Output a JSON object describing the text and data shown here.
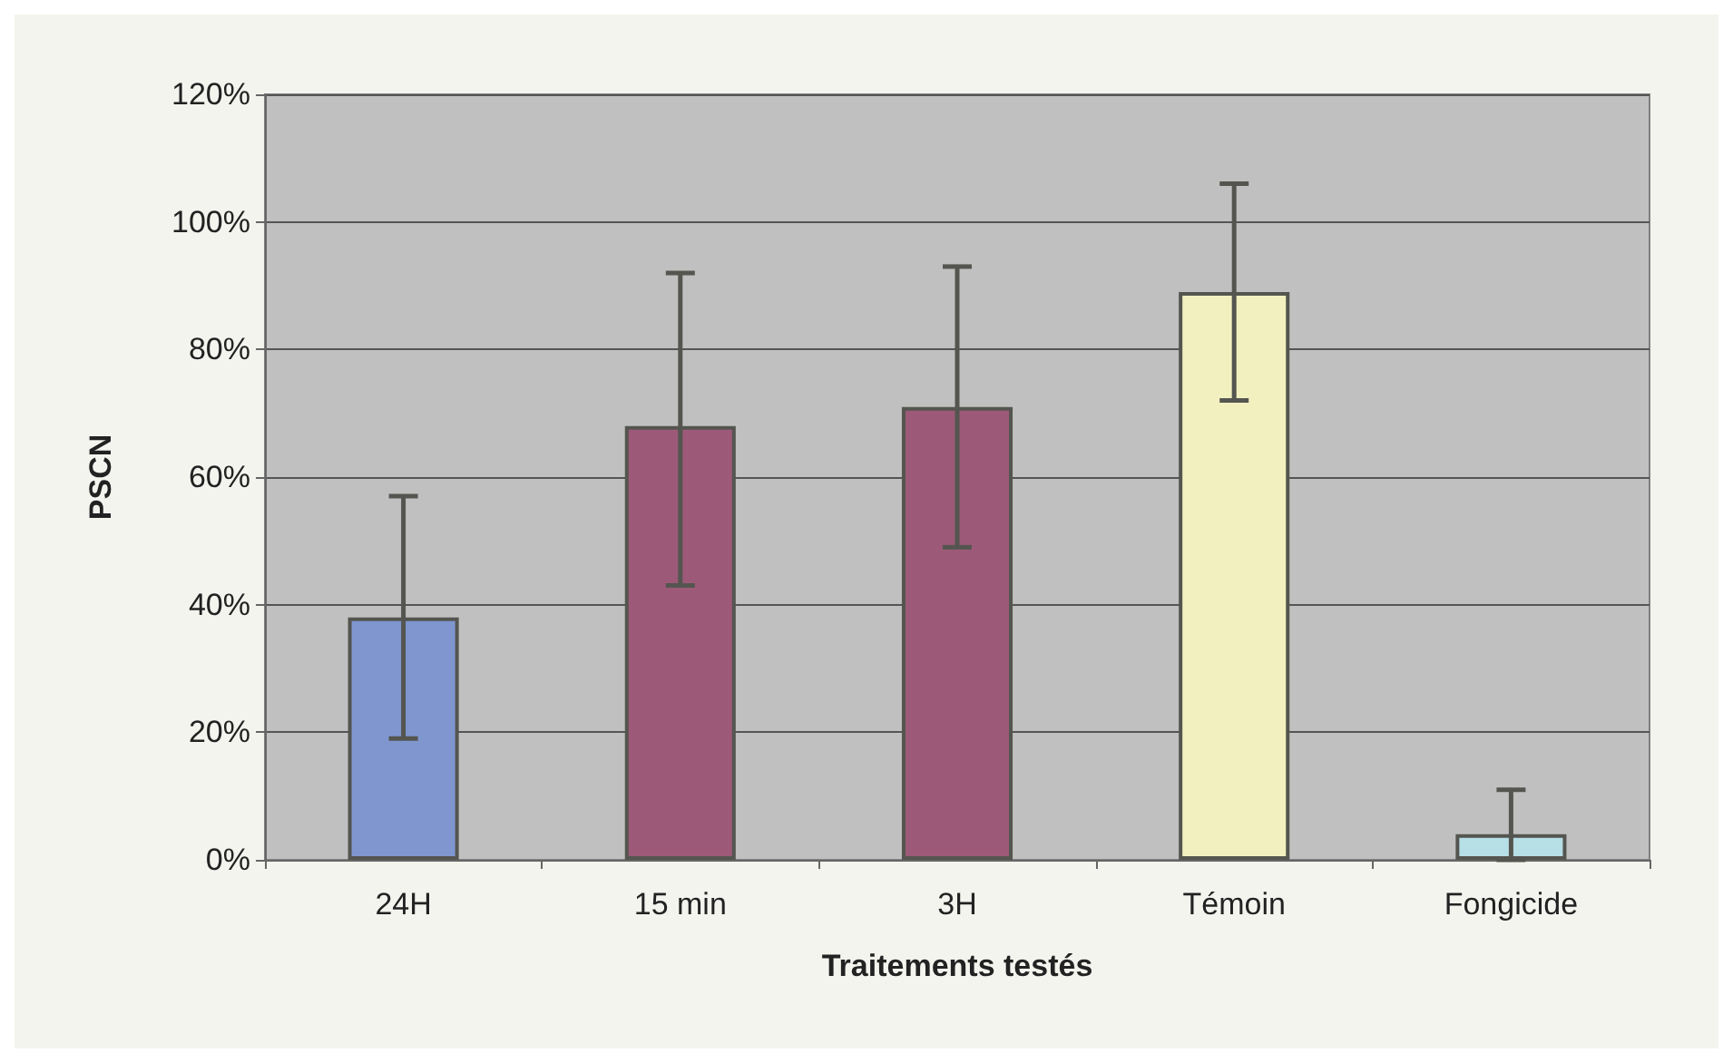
{
  "chart_data": {
    "type": "bar",
    "xlabel": "Traitements testés",
    "ylabel": "PSCN",
    "categories": [
      "24H",
      "15 min",
      "3H",
      "Témoin",
      "Fongicide"
    ],
    "values": [
      38,
      68,
      71,
      89,
      4
    ],
    "colors": [
      "#7f96cf",
      "#9c5a78",
      "#9c5a78",
      "#f2f0bf",
      "#b6dfe6"
    ],
    "errors": [
      [
        19,
        57
      ],
      [
        43,
        92
      ],
      [
        49,
        93
      ],
      [
        72,
        106
      ],
      [
        0,
        11
      ]
    ],
    "ylim": [
      0,
      120
    ],
    "yticks": [
      {
        "value": 0,
        "label": "0%"
      },
      {
        "value": 20,
        "label": "20%"
      },
      {
        "value": 40,
        "label": "40%"
      },
      {
        "value": 60,
        "label": "60%"
      },
      {
        "value": 80,
        "label": "80%"
      },
      {
        "value": 100,
        "label": "100%"
      },
      {
        "value": 120,
        "label": "120%"
      }
    ],
    "grid": "y"
  }
}
